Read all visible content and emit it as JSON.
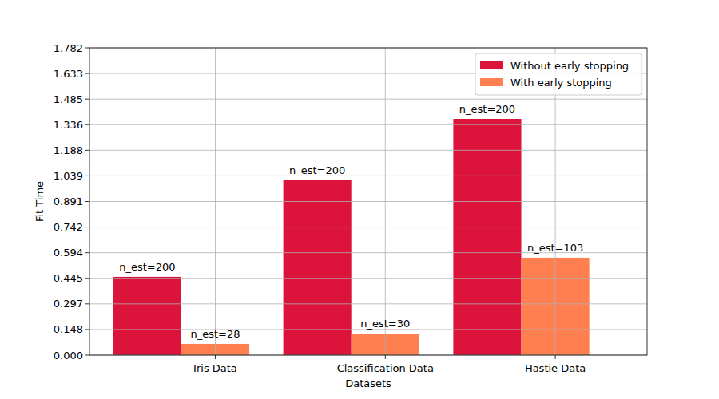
{
  "chart_data": {
    "type": "bar",
    "x_label": "Datasets",
    "y_label": "Fit Time",
    "categories": [
      "Iris Data",
      "Classification Data",
      "Hastie Data"
    ],
    "series": [
      {
        "name": "Without early stopping",
        "color": "#dc143c",
        "values": [
          0.454,
          1.014,
          1.37
        ],
        "annotations": [
          "n_est=200",
          "n_est=200",
          "n_est=200"
        ]
      },
      {
        "name": "With early stopping",
        "color": "#ff7f50",
        "values": [
          0.065,
          0.125,
          0.565
        ],
        "annotations": [
          "n_est=28",
          "n_est=30",
          "n_est=103"
        ]
      }
    ],
    "ylim": [
      0,
      1.782
    ],
    "yticks": [
      {
        "value": 0,
        "label": "0.000"
      },
      {
        "value": 0.14849,
        "label": "0.148"
      },
      {
        "value": 0.297,
        "label": "0.297"
      },
      {
        "value": 0.44549,
        "label": "0.445"
      },
      {
        "value": 0.594,
        "label": "0.594"
      },
      {
        "value": 0.74249,
        "label": "0.742"
      },
      {
        "value": 0.891,
        "label": "0.891"
      },
      {
        "value": 1.03949,
        "label": "1.039"
      },
      {
        "value": 1.188,
        "label": "1.188"
      },
      {
        "value": 1.33649,
        "label": "1.336"
      },
      {
        "value": 1.485,
        "label": "1.485"
      },
      {
        "value": 1.63349,
        "label": "1.633"
      },
      {
        "value": 1.782,
        "label": "1.782"
      }
    ],
    "grid": true,
    "legend": "upper right"
  }
}
